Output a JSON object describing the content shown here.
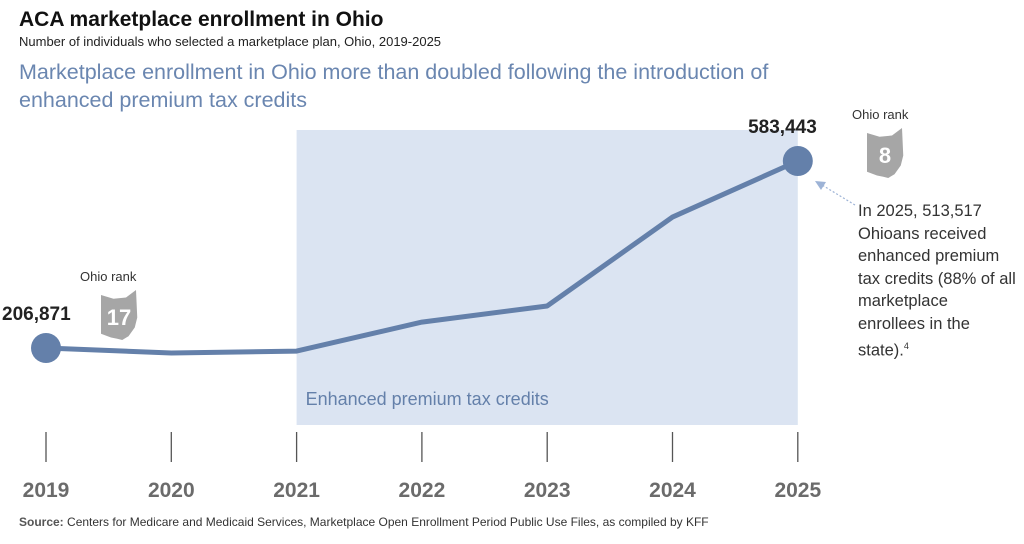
{
  "title": "ACA marketplace enrollment in Ohio",
  "subtitle": "Number of individuals who selected a marketplace plan, Ohio, 2019-2025",
  "headline": "Marketplace enrollment in Ohio more than doubled following the introduction of enhanced premium tax credits",
  "source_label": "Source:",
  "source_text": "Centers for Medicare and Medicaid Services, Marketplace Open Enrollment Period Public Use Files, as compiled by KFF",
  "annotation": "In 2025, 513,517 Ohioans received enhanced premium tax credits (88% of all marketplace enrollees in the state).",
  "annotation_footnote": "4",
  "colors": {
    "line": "#6480aa",
    "shade": "#dbe4f2",
    "axis_text": "#6b6b6b",
    "rank_shape": "#a6a6a6"
  },
  "chart_data": {
    "type": "line",
    "categories": [
      "2019",
      "2020",
      "2021",
      "2022",
      "2023",
      "2024",
      "2025"
    ],
    "values": [
      206871,
      196800,
      200700,
      259000,
      291500,
      470500,
      583443
    ],
    "ylim": [
      150000,
      650000
    ],
    "grid": false,
    "data_labels": {
      "2019": "206,871",
      "2025": "583,443"
    },
    "shaded_region": {
      "from": "2021",
      "to": "2025",
      "label": "Enhanced premium tax credits"
    },
    "ranks": [
      {
        "year": "2019",
        "label": "Ohio rank",
        "rank": "17"
      },
      {
        "year": "2025",
        "label": "Ohio rank",
        "rank": "8"
      }
    ]
  }
}
